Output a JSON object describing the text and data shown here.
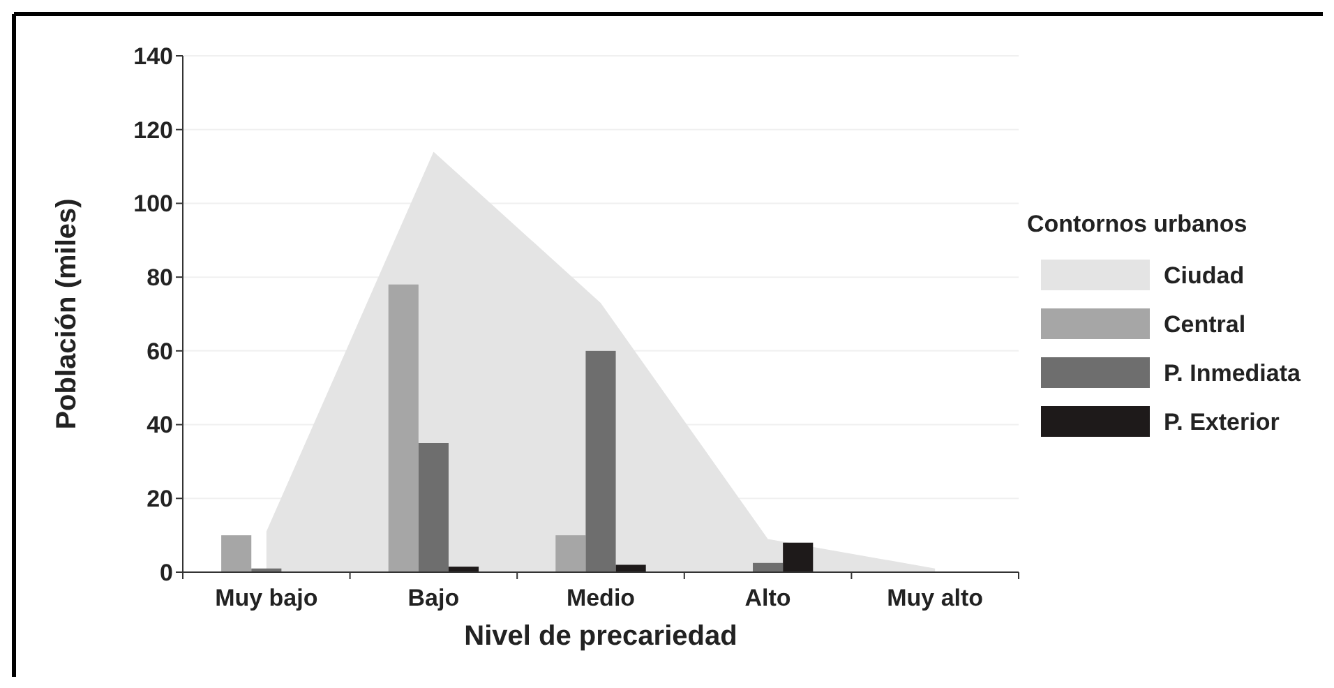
{
  "chart_data": {
    "type": "bar",
    "xlabel": "Nivel de precariedad",
    "ylabel": "Población (miles)",
    "legend_title": "Contornos urbanos",
    "categories": [
      "Muy bajo",
      "Bajo",
      "Medio",
      "Alto",
      "Muy alto"
    ],
    "series": [
      {
        "name": "Ciudad",
        "type": "area",
        "color": "#e4e4e4",
        "values": [
          11,
          114,
          73,
          9,
          1
        ]
      },
      {
        "name": "Central",
        "color": "#a6a6a6",
        "values": [
          10,
          78,
          10,
          0,
          0
        ]
      },
      {
        "name": "P. Inmediata",
        "color": "#6e6e6e",
        "values": [
          1,
          35,
          60,
          2.5,
          0
        ]
      },
      {
        "name": "P. Exterior",
        "color": "#1e1a1a",
        "values": [
          0,
          1.5,
          2,
          8,
          0
        ]
      }
    ],
    "ylim": [
      0,
      140
    ],
    "yticks": [
      0,
      20,
      40,
      60,
      80,
      100,
      120,
      140
    ],
    "grid": "y",
    "legend": "right"
  }
}
